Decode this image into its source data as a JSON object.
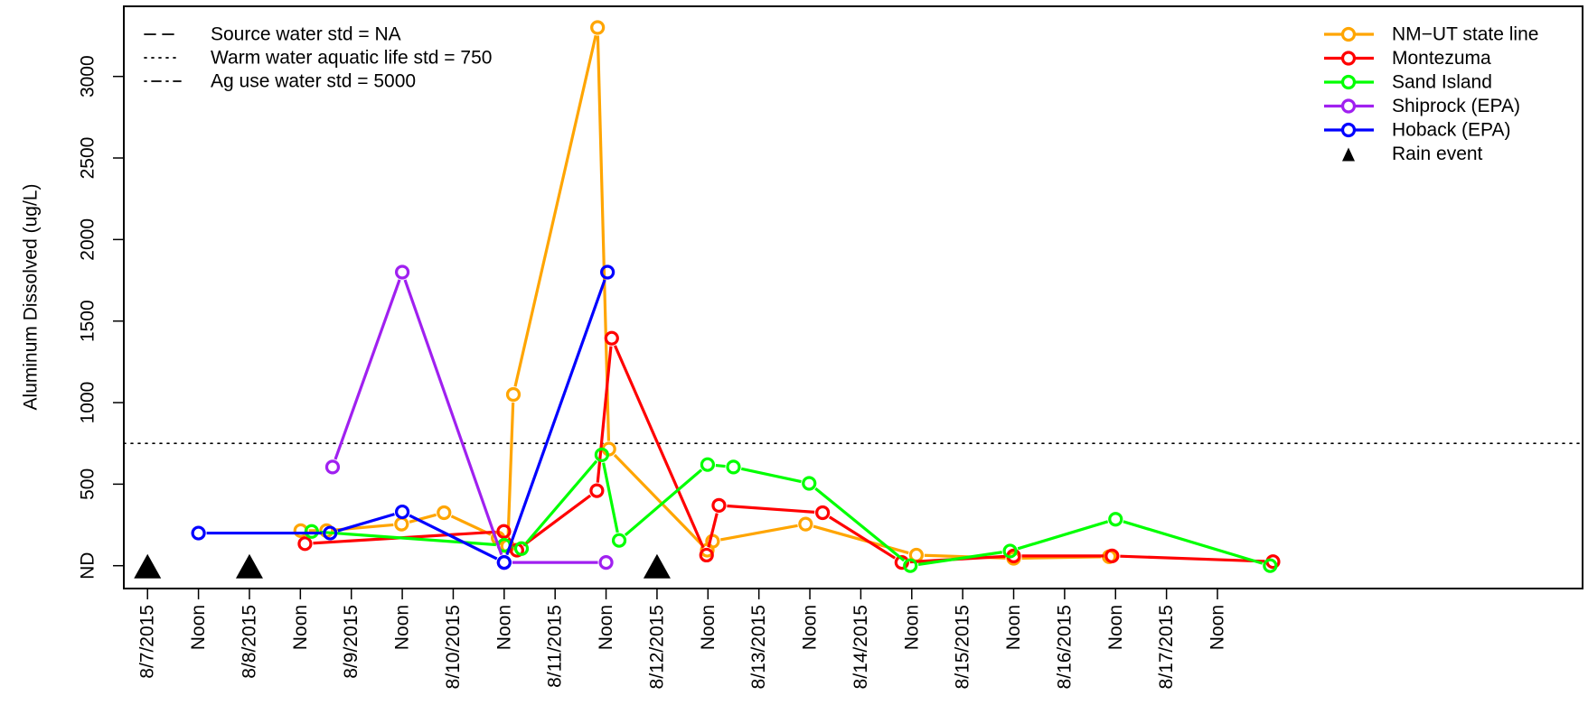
{
  "chart_data": {
    "type": "line",
    "ylabel": "Aluminum Dissolved (ug/L)",
    "xlabel": "",
    "x_range": [
      "2015-08-06 18:25",
      "2015-08-21 02:00"
    ],
    "ylim": [
      -140,
      3430
    ],
    "y_ticks": [
      {
        "value": 0,
        "label": "ND"
      },
      {
        "value": 500,
        "label": "500"
      },
      {
        "value": 1000,
        "label": "1000"
      },
      {
        "value": 1500,
        "label": "1500"
      },
      {
        "value": 2000,
        "label": "2000"
      },
      {
        "value": 2500,
        "label": "2500"
      },
      {
        "value": 3000,
        "label": "3000"
      }
    ],
    "x_ticks": [
      {
        "x": "2015-08-07 00:00",
        "label": "8/7/2015"
      },
      {
        "x": "2015-08-07 12:00",
        "label": "Noon"
      },
      {
        "x": "2015-08-08 00:00",
        "label": "8/8/2015"
      },
      {
        "x": "2015-08-08 12:00",
        "label": "Noon"
      },
      {
        "x": "2015-08-09 00:00",
        "label": "8/9/2015"
      },
      {
        "x": "2015-08-09 12:00",
        "label": "Noon"
      },
      {
        "x": "2015-08-10 00:00",
        "label": "8/10/2015"
      },
      {
        "x": "2015-08-10 12:00",
        "label": "Noon"
      },
      {
        "x": "2015-08-11 00:00",
        "label": "8/11/2015"
      },
      {
        "x": "2015-08-11 12:00",
        "label": "Noon"
      },
      {
        "x": "2015-08-12 00:00",
        "label": "8/12/2015"
      },
      {
        "x": "2015-08-12 12:00",
        "label": "Noon"
      },
      {
        "x": "2015-08-13 00:00",
        "label": "8/13/2015"
      },
      {
        "x": "2015-08-13 12:00",
        "label": "Noon"
      },
      {
        "x": "2015-08-14 00:00",
        "label": "8/14/2015"
      },
      {
        "x": "2015-08-14 12:00",
        "label": "Noon"
      },
      {
        "x": "2015-08-15 00:00",
        "label": "8/15/2015"
      },
      {
        "x": "2015-08-15 12:00",
        "label": "Noon"
      },
      {
        "x": "2015-08-16 00:00",
        "label": "8/16/2015"
      },
      {
        "x": "2015-08-16 12:00",
        "label": "Noon"
      },
      {
        "x": "2015-08-17 00:00",
        "label": "8/17/2015"
      },
      {
        "x": "2015-08-17 12:00",
        "label": "Noon"
      }
    ],
    "reference_lines": [
      {
        "label": "Source water std = NA",
        "value": null,
        "dash": "dashed"
      },
      {
        "label": "Warm water aquatic life std = 750",
        "value": 750,
        "dash": "dotted"
      },
      {
        "label": "Ag use water std = 5000",
        "value": 5000,
        "dash": "dotdash"
      }
    ],
    "series": [
      {
        "name": "NM−UT state line",
        "color": "#FFA500",
        "points": [
          {
            "x": "2015-08-08 12:05",
            "y": 215
          },
          {
            "x": "2015-08-08 18:10",
            "y": 215
          },
          {
            "x": "2015-08-09 11:50",
            "y": 255
          },
          {
            "x": "2015-08-09 21:50",
            "y": 325
          },
          {
            "x": "2015-08-10 10:35",
            "y": 170
          },
          {
            "x": "2015-08-10 12:50",
            "y": 120
          },
          {
            "x": "2015-08-10 14:10",
            "y": 1050
          },
          {
            "x": "2015-08-11 10:00",
            "y": 3300
          },
          {
            "x": "2015-08-11 12:40",
            "y": 715
          },
          {
            "x": "2015-08-12 11:50",
            "y": 95
          },
          {
            "x": "2015-08-12 13:05",
            "y": 150
          },
          {
            "x": "2015-08-13 11:00",
            "y": 255
          },
          {
            "x": "2015-08-14 13:05",
            "y": 65
          },
          {
            "x": "2015-08-15 12:00",
            "y": 45
          },
          {
            "x": "2015-08-16 10:30",
            "y": 55
          }
        ]
      },
      {
        "name": "Montezuma",
        "color": "#FF0000",
        "points": [
          {
            "x": "2015-08-08 13:05",
            "y": 135
          },
          {
            "x": "2015-08-10 11:55",
            "y": 210
          },
          {
            "x": "2015-08-10 15:00",
            "y": 95
          },
          {
            "x": "2015-08-11 09:50",
            "y": 460
          },
          {
            "x": "2015-08-11 13:20",
            "y": 1395
          },
          {
            "x": "2015-08-12 11:40",
            "y": 65
          },
          {
            "x": "2015-08-12 14:35",
            "y": 370
          },
          {
            "x": "2015-08-13 15:00",
            "y": 325
          },
          {
            "x": "2015-08-14 09:40",
            "y": 20
          },
          {
            "x": "2015-08-15 12:00",
            "y": 60
          },
          {
            "x": "2015-08-16 11:10",
            "y": 60
          },
          {
            "x": "2015-08-18 01:05",
            "y": 25
          }
        ]
      },
      {
        "name": "Sand Island",
        "color": "#00FF00",
        "points": [
          {
            "x": "2015-08-08 14:40",
            "y": 210
          },
          {
            "x": "2015-08-10 12:00",
            "y": 125
          },
          {
            "x": "2015-08-10 16:05",
            "y": 105
          },
          {
            "x": "2015-08-11 11:00",
            "y": 680
          },
          {
            "x": "2015-08-11 15:05",
            "y": 155
          },
          {
            "x": "2015-08-12 11:55",
            "y": 620
          },
          {
            "x": "2015-08-12 18:00",
            "y": 605
          },
          {
            "x": "2015-08-13 11:50",
            "y": 505
          },
          {
            "x": "2015-08-14 11:40",
            "y": 0
          },
          {
            "x": "2015-08-15 11:10",
            "y": 90
          },
          {
            "x": "2015-08-16 12:00",
            "y": 285
          },
          {
            "x": "2015-08-18 00:25",
            "y": 0
          }
        ]
      },
      {
        "name": "Shiprock (EPA)",
        "color": "#A020F0",
        "points": [
          {
            "x": "2015-08-08 19:35",
            "y": 605
          },
          {
            "x": "2015-08-09 12:00",
            "y": 1800
          },
          {
            "x": "2015-08-10 12:00",
            "y": 20
          },
          {
            "x": "2015-08-11 12:00",
            "y": 20
          }
        ]
      },
      {
        "name": "Hoback (EPA)",
        "color": "#0000FF",
        "points": [
          {
            "x": "2015-08-07 12:00",
            "y": 200
          },
          {
            "x": "2015-08-08 19:00",
            "y": 200
          },
          {
            "x": "2015-08-09 12:00",
            "y": 330
          },
          {
            "x": "2015-08-10 12:00",
            "y": 20
          },
          {
            "x": "2015-08-11 12:20",
            "y": 1800
          }
        ]
      }
    ],
    "rain_events": {
      "name": "Rain event",
      "color": "#000000",
      "x": [
        "2015-08-07 00:00",
        "2015-08-08 00:00",
        "2015-08-12 00:00"
      ],
      "y": 0
    },
    "legend": {
      "placement": "top-right",
      "reference_placement": "top-left"
    },
    "grid": false
  }
}
